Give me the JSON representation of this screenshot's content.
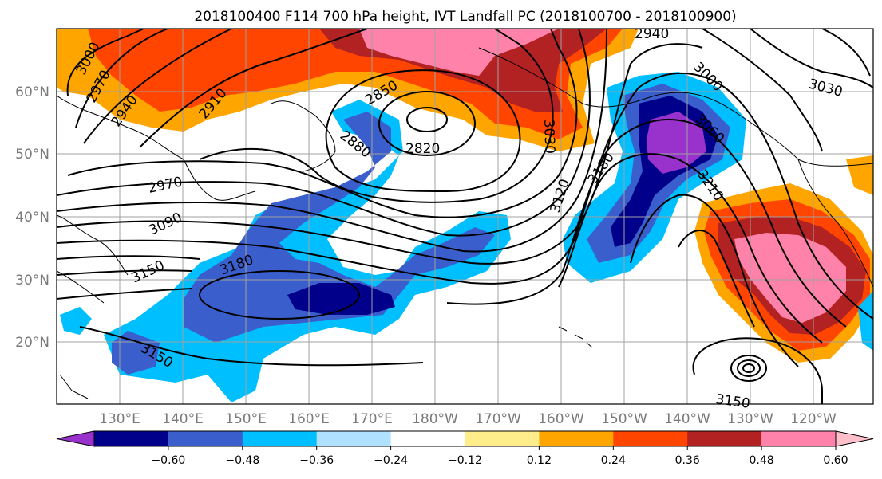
{
  "title": "2018100400 F114 700 hPa height, IVT Landfall PC (2018100700 - 2018100900)",
  "map": {
    "lat_labels": [
      "20°N",
      "30°N",
      "40°N",
      "50°N",
      "60°N"
    ],
    "lon_labels": [
      "130°E",
      "140°E",
      "150°E",
      "160°E",
      "170°E",
      "180°W",
      "170°W",
      "160°W",
      "150°W",
      "140°W",
      "130°W",
      "120°W"
    ],
    "contour_labels": [
      "3000",
      "2970",
      "2940",
      "2910",
      "2850",
      "2820",
      "2880",
      "2970",
      "3090",
      "3150",
      "3180",
      "3150",
      "2940",
      "3000",
      "3060",
      "3030",
      "3030",
      "3120",
      "3180",
      "3210",
      "3150"
    ]
  },
  "colorbar": {
    "tick_labels": [
      "−0.60",
      "−0.48",
      "−0.36",
      "−0.24",
      "−0.12",
      "0.12",
      "0.24",
      "0.36",
      "0.48",
      "0.60"
    ],
    "colors": [
      "#9932CC",
      "#00008B",
      "#3A5FCD",
      "#00BFFF",
      "#B0E2FF",
      "#FFFFFF",
      "#FFEC8B",
      "#FFA500",
      "#FF4500",
      "#B22222",
      "#FF82AB",
      "#FFC0CB"
    ]
  },
  "colors": {
    "coast": "#000000",
    "grid": "#a0a0a0",
    "contour": "#000000"
  }
}
